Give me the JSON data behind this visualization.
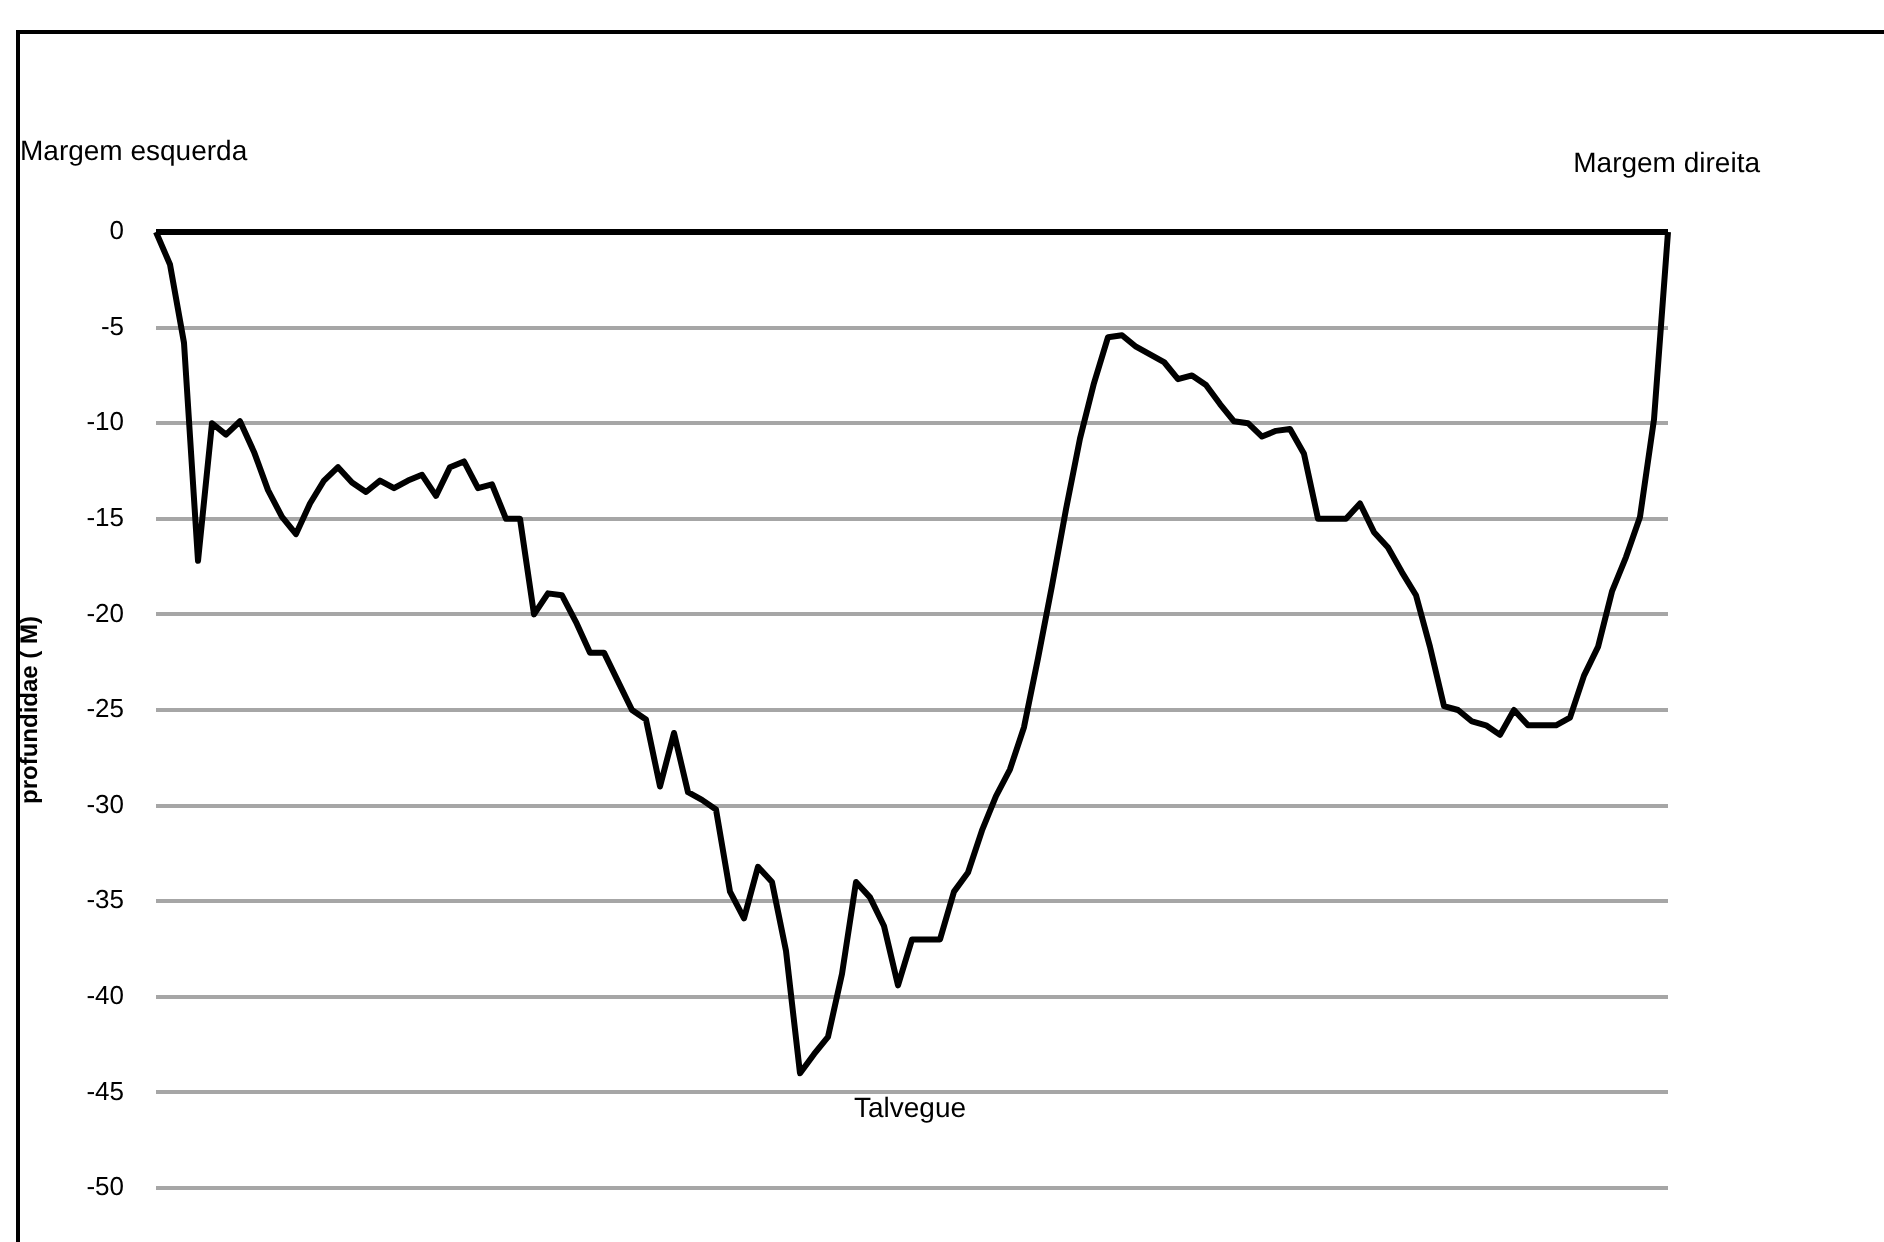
{
  "chart_data": {
    "type": "line",
    "ylabel": "profundidae ( M)",
    "annotations": [
      "Margem esquerda",
      "Margem direita",
      "Talvegue"
    ],
    "categories": [
      null,
      null,
      null,
      null,
      null,
      null,
      null,
      null,
      null,
      null,
      null,
      null,
      null,
      null,
      null,
      null,
      null,
      null,
      null,
      null,
      null,
      null,
      null,
      null,
      null,
      null,
      null,
      null,
      null,
      null,
      null,
      null,
      null,
      null,
      null,
      null,
      null,
      null,
      null,
      null,
      null,
      null,
      null,
      null,
      null,
      null,
      null,
      null,
      null,
      null,
      null,
      null,
      null,
      null,
      null,
      null,
      null,
      null,
      null,
      null,
      null,
      null,
      null,
      null,
      null,
      null,
      null,
      null,
      null,
      null,
      null,
      null,
      null,
      null,
      null,
      null,
      null,
      null,
      null,
      null,
      null,
      null,
      null,
      null,
      null,
      null,
      null,
      null,
      null,
      null,
      null,
      null,
      null,
      null,
      null,
      null,
      null,
      null,
      null,
      null,
      null,
      null,
      null,
      null,
      null,
      null,
      null,
      null,
      null
    ],
    "series": [
      {
        "color": "#000000",
        "values": [
          0,
          -1.7,
          -5.8,
          -17.2,
          -10,
          -10.6,
          -9.9,
          -11.5,
          -13.5,
          -14.9,
          -15.8,
          -14.2,
          -13,
          -12.3,
          -13.1,
          -13.6,
          -13,
          -13.4,
          -13,
          -12.7,
          -13.8,
          -12.3,
          -12,
          -13.4,
          -13.2,
          -15,
          -15,
          -20,
          -18.9,
          -19,
          -20.4,
          -22,
          -22,
          -23.5,
          -25,
          -25.5,
          -29,
          -26.2,
          -29.3,
          -29.7,
          -30.2,
          -34.5,
          -35.9,
          -33.2,
          -34,
          -37.6,
          -44,
          -43,
          -42.1,
          -38.8,
          -34,
          -34.8,
          -36.3,
          -39.4,
          -37,
          -37,
          -37,
          -34.5,
          -33.5,
          -31.3,
          -29.5,
          -28.1,
          -25.9,
          -22.3,
          -18.5,
          -14.5,
          -10.8,
          -7.9,
          -5.5,
          -5.4,
          -6,
          -6.4,
          -6.8,
          -7.7,
          -7.5,
          -8,
          -9,
          -9.9,
          -10,
          -10.7,
          -10.4,
          -10.3,
          -11.6,
          -15,
          -15,
          -15,
          -14.2,
          -15.7,
          -16.5,
          -17.8,
          -19,
          -21.7,
          -24.8,
          -25,
          -25.6,
          -25.8,
          -26.3,
          -25,
          -25.8,
          -25.8,
          -25.8,
          -25.4,
          -23.2,
          -21.7,
          -18.8,
          -17,
          -14.9,
          -9.8,
          0
        ]
      }
    ],
    "ylim": [
      -50,
      0
    ],
    "yticks": [
      0,
      -5,
      -10,
      -15,
      -20,
      -25,
      -30,
      -35,
      -40,
      -45,
      -50
    ],
    "grid": "y",
    "legend": false,
    "tick_labels": "y",
    "marker": "none",
    "line_style": "solid",
    "ref_lines": [
      {
        "axis": "y",
        "value": 0,
        "color": "#000000"
      }
    ]
  }
}
